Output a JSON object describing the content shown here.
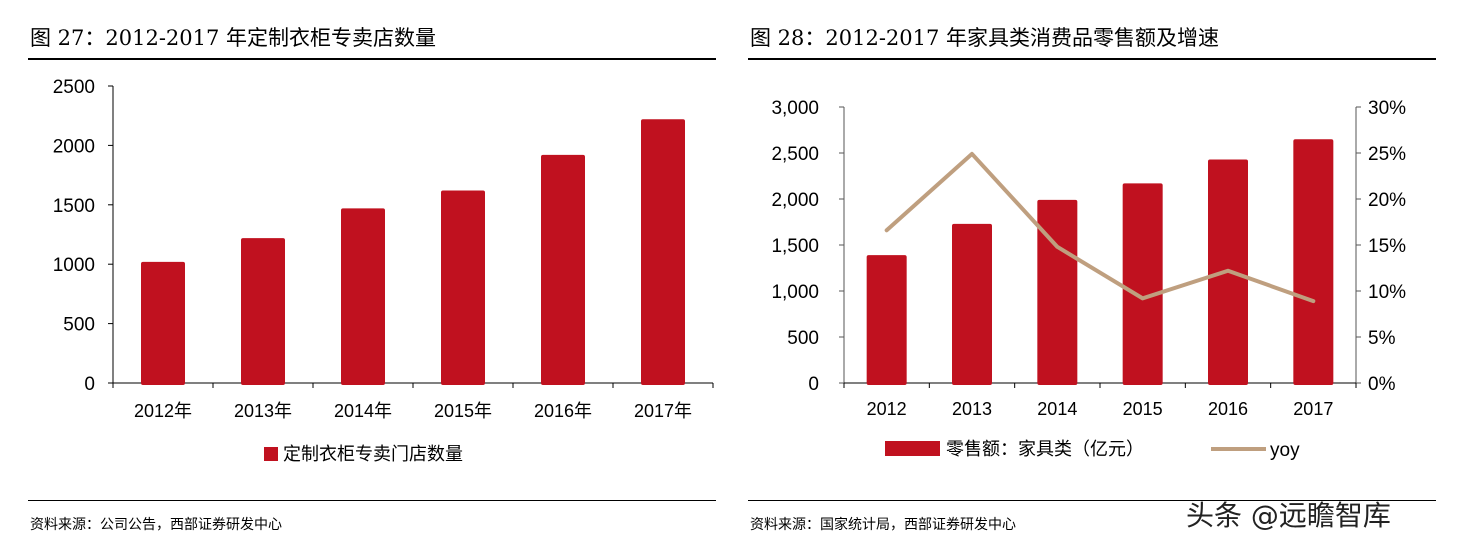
{
  "chart_data": [
    {
      "type": "bar",
      "figure_label": "图 27：2012-2017 年定制衣柜专卖店数量",
      "categories": [
        "2012年",
        "2013年",
        "2014年",
        "2015年",
        "2016年",
        "2017年"
      ],
      "series": [
        {
          "name": "定制衣柜专卖门店数量",
          "values": [
            1020,
            1220,
            1470,
            1620,
            1920,
            2220
          ],
          "color": "#c0111f"
        }
      ],
      "ylim": [
        0,
        2500
      ],
      "yticks": [
        "0",
        "500",
        "1000",
        "1500",
        "2000",
        "2500"
      ],
      "grid": false,
      "legend": "bottom",
      "source": "资料来源：公司公告，西部证券研发中心"
    },
    {
      "type": "bar+line",
      "figure_label": "图 28：2012-2017 年家具类消费品零售额及增速",
      "categories": [
        "2012",
        "2013",
        "2014",
        "2015",
        "2016",
        "2017"
      ],
      "series": [
        {
          "name": "零售额：家具类（亿元）",
          "axis": "left",
          "type": "bar",
          "values": [
            1390,
            1730,
            1990,
            2170,
            2430,
            2650
          ],
          "color": "#c0111f"
        },
        {
          "name": "yoy",
          "axis": "right",
          "type": "line",
          "values": [
            16.6,
            24.9,
            14.8,
            9.2,
            12.2,
            8.9
          ],
          "unit": "%",
          "color": "#bf9f7f"
        }
      ],
      "ylim_left": [
        0,
        3000
      ],
      "yticks_left": [
        "0",
        "500",
        "1,000",
        "1,500",
        "2,000",
        "2,500",
        "3,000"
      ],
      "ylim_right": [
        0,
        30
      ],
      "yticks_right": [
        "0%",
        "5%",
        "10%",
        "15%",
        "20%",
        "25%",
        "30%"
      ],
      "grid": false,
      "legend": "bottom",
      "source": "资料来源：国家统计局，西部证券研发中心"
    }
  ],
  "watermark": "头条 @远瞻智库"
}
